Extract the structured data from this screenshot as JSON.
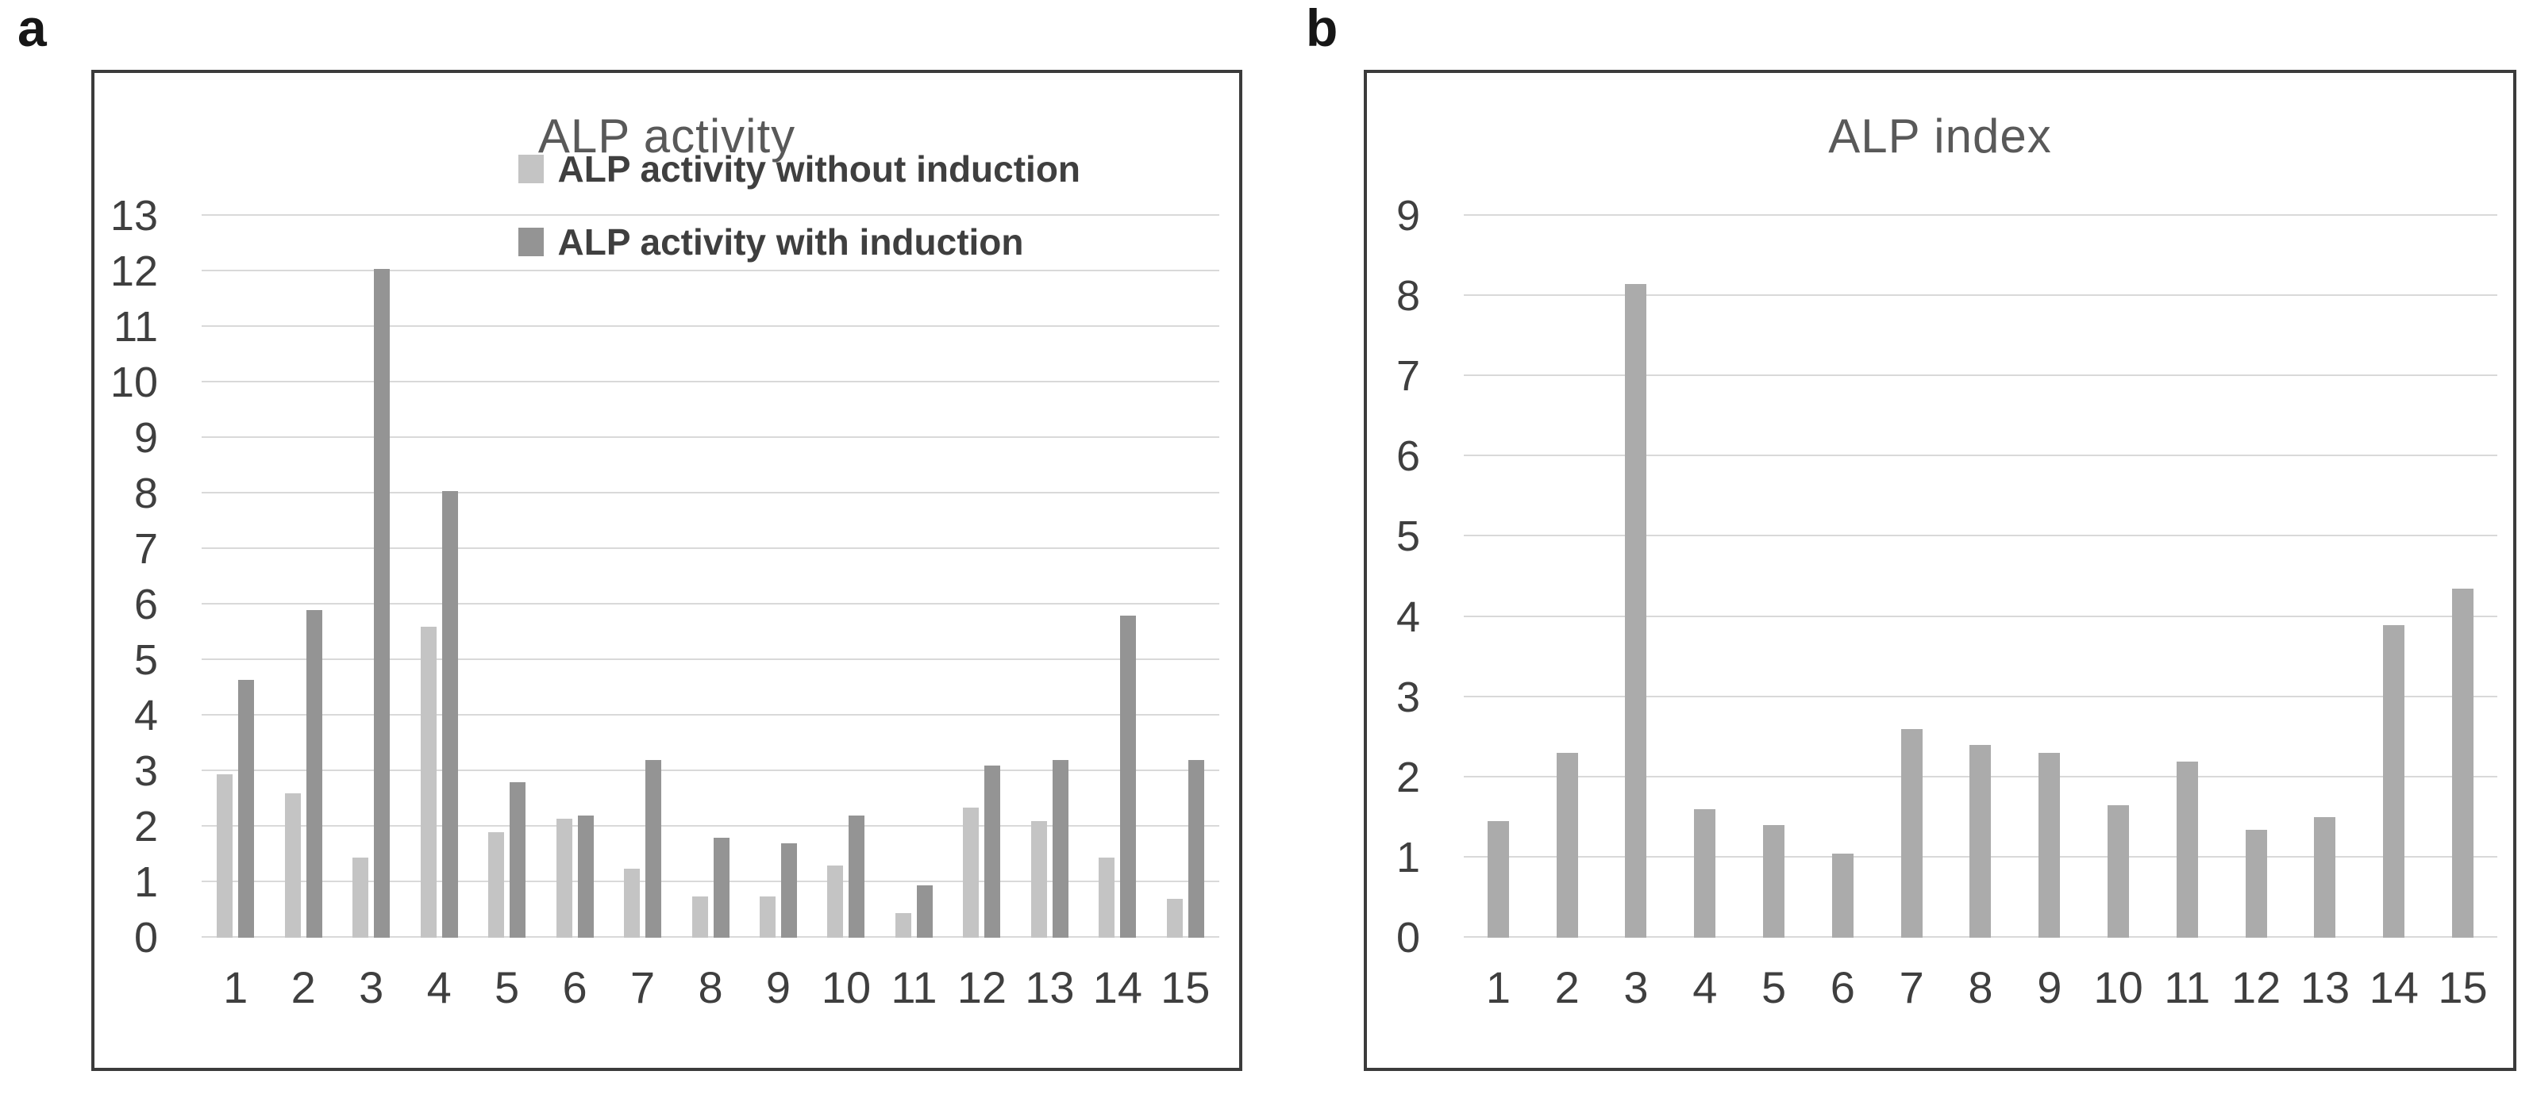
{
  "page": {
    "background": "#ffffff",
    "frame_color": "#3b3b3b",
    "gridline_color": "#d9d9d9",
    "title_color": "#595959",
    "tick_color": "#3f3f3f"
  },
  "chart_data": [
    {
      "type": "bar",
      "panel_label": "a",
      "title": "ALP activity",
      "xlabel": "",
      "ylabel": "",
      "ylim": [
        0,
        13
      ],
      "ytick_step": 1,
      "grid": true,
      "legend_position": "inside-upper-right",
      "categories": [
        "1",
        "2",
        "3",
        "4",
        "5",
        "6",
        "7",
        "8",
        "9",
        "10",
        "11",
        "12",
        "13",
        "14",
        "15"
      ],
      "series": [
        {
          "name": "ALP activity without induction",
          "color": "#c4c4c4",
          "values": [
            2.95,
            2.6,
            1.45,
            5.6,
            1.9,
            2.15,
            1.25,
            0.75,
            0.75,
            1.3,
            0.45,
            2.35,
            2.1,
            1.45,
            0.7
          ]
        },
        {
          "name": "ALP activity with induction",
          "color": "#949494",
          "values": [
            4.65,
            5.9,
            12.05,
            8.05,
            2.8,
            2.2,
            3.2,
            1.8,
            1.7,
            2.2,
            0.95,
            3.1,
            3.2,
            5.8,
            3.2
          ]
        }
      ]
    },
    {
      "type": "bar",
      "panel_label": "b",
      "title": "ALP index",
      "xlabel": "",
      "ylabel": "",
      "ylim": [
        0,
        9
      ],
      "ytick_step": 1,
      "grid": true,
      "legend_position": "none",
      "categories": [
        "1",
        "2",
        "3",
        "4",
        "5",
        "6",
        "7",
        "8",
        "9",
        "10",
        "11",
        "12",
        "13",
        "14",
        "15"
      ],
      "series": [
        {
          "name": "ALP index",
          "color": "#ababab",
          "values": [
            1.45,
            2.3,
            8.15,
            1.6,
            1.4,
            1.05,
            2.6,
            2.4,
            2.3,
            1.65,
            2.2,
            1.35,
            1.5,
            3.9,
            4.35
          ]
        }
      ]
    }
  ]
}
